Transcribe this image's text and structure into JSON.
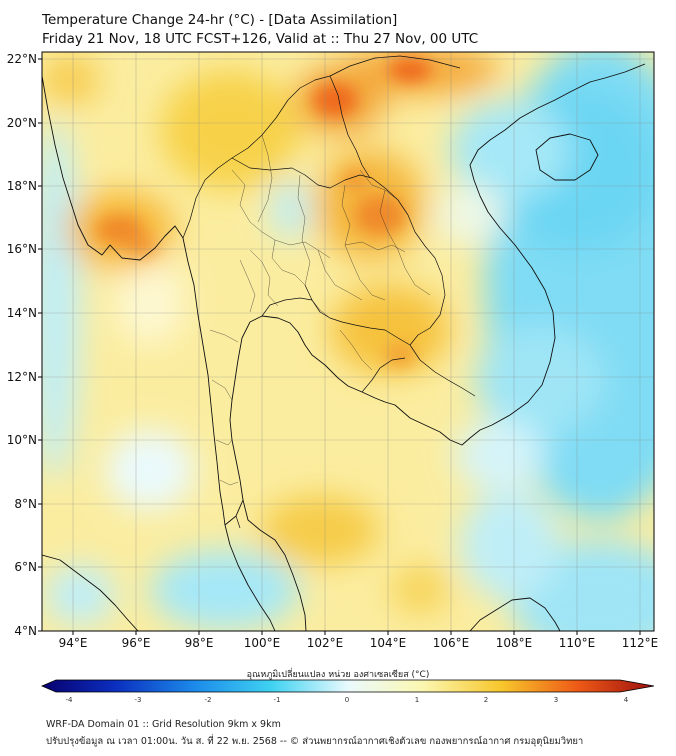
{
  "header": {
    "title_line1": "Temperature Change 24-hr (°C) - [Data Assimilation]",
    "title_line2": "Friday 21 Nov, 18 UTC FCST+126, Valid at :: Thu 27 Nov, 00 UTC"
  },
  "map": {
    "lon_labels": [
      "94°E",
      "96°E",
      "98°E",
      "100°E",
      "102°E",
      "104°E",
      "106°E",
      "108°E",
      "110°E",
      "112°E"
    ],
    "lat_labels": [
      "22°N",
      "20°N",
      "18°N",
      "16°N",
      "14°N",
      "12°N",
      "10°N",
      "8°N",
      "6°N",
      "4°N"
    ],
    "extent": {
      "lon_min": 93,
      "lon_max": 112.5,
      "lat_min": 4,
      "lat_max": 22.2
    }
  },
  "colorbar": {
    "label": "อุณหภูมิเปลี่ยนแปลง หน่วย องศาเซลเซียส (°C)",
    "ticks": [
      "-4",
      "-3",
      "-2",
      "-1",
      "0",
      "1",
      "2",
      "3",
      "4"
    ],
    "colors": [
      "#08006e",
      "#0b2fbf",
      "#1c8bea",
      "#3fd2f2",
      "#eafafd",
      "#fbf7b2",
      "#f7c72c",
      "#ee5a16",
      "#9c0f0f"
    ]
  },
  "footer": {
    "line1": "WRF-DA Domain 01 :: Grid Resolution 9km x 9km",
    "line2": "ปรับปรุงข้อมูล ณ เวลา 01:00น. วัน ส. ที่ 22 พ.ย. 2568 -- © ส่วนพยากรณ์อากาศเชิงตัวเลข กองพยากรณ์อากาศ กรมอุตุนิยมวิทยา"
  }
}
